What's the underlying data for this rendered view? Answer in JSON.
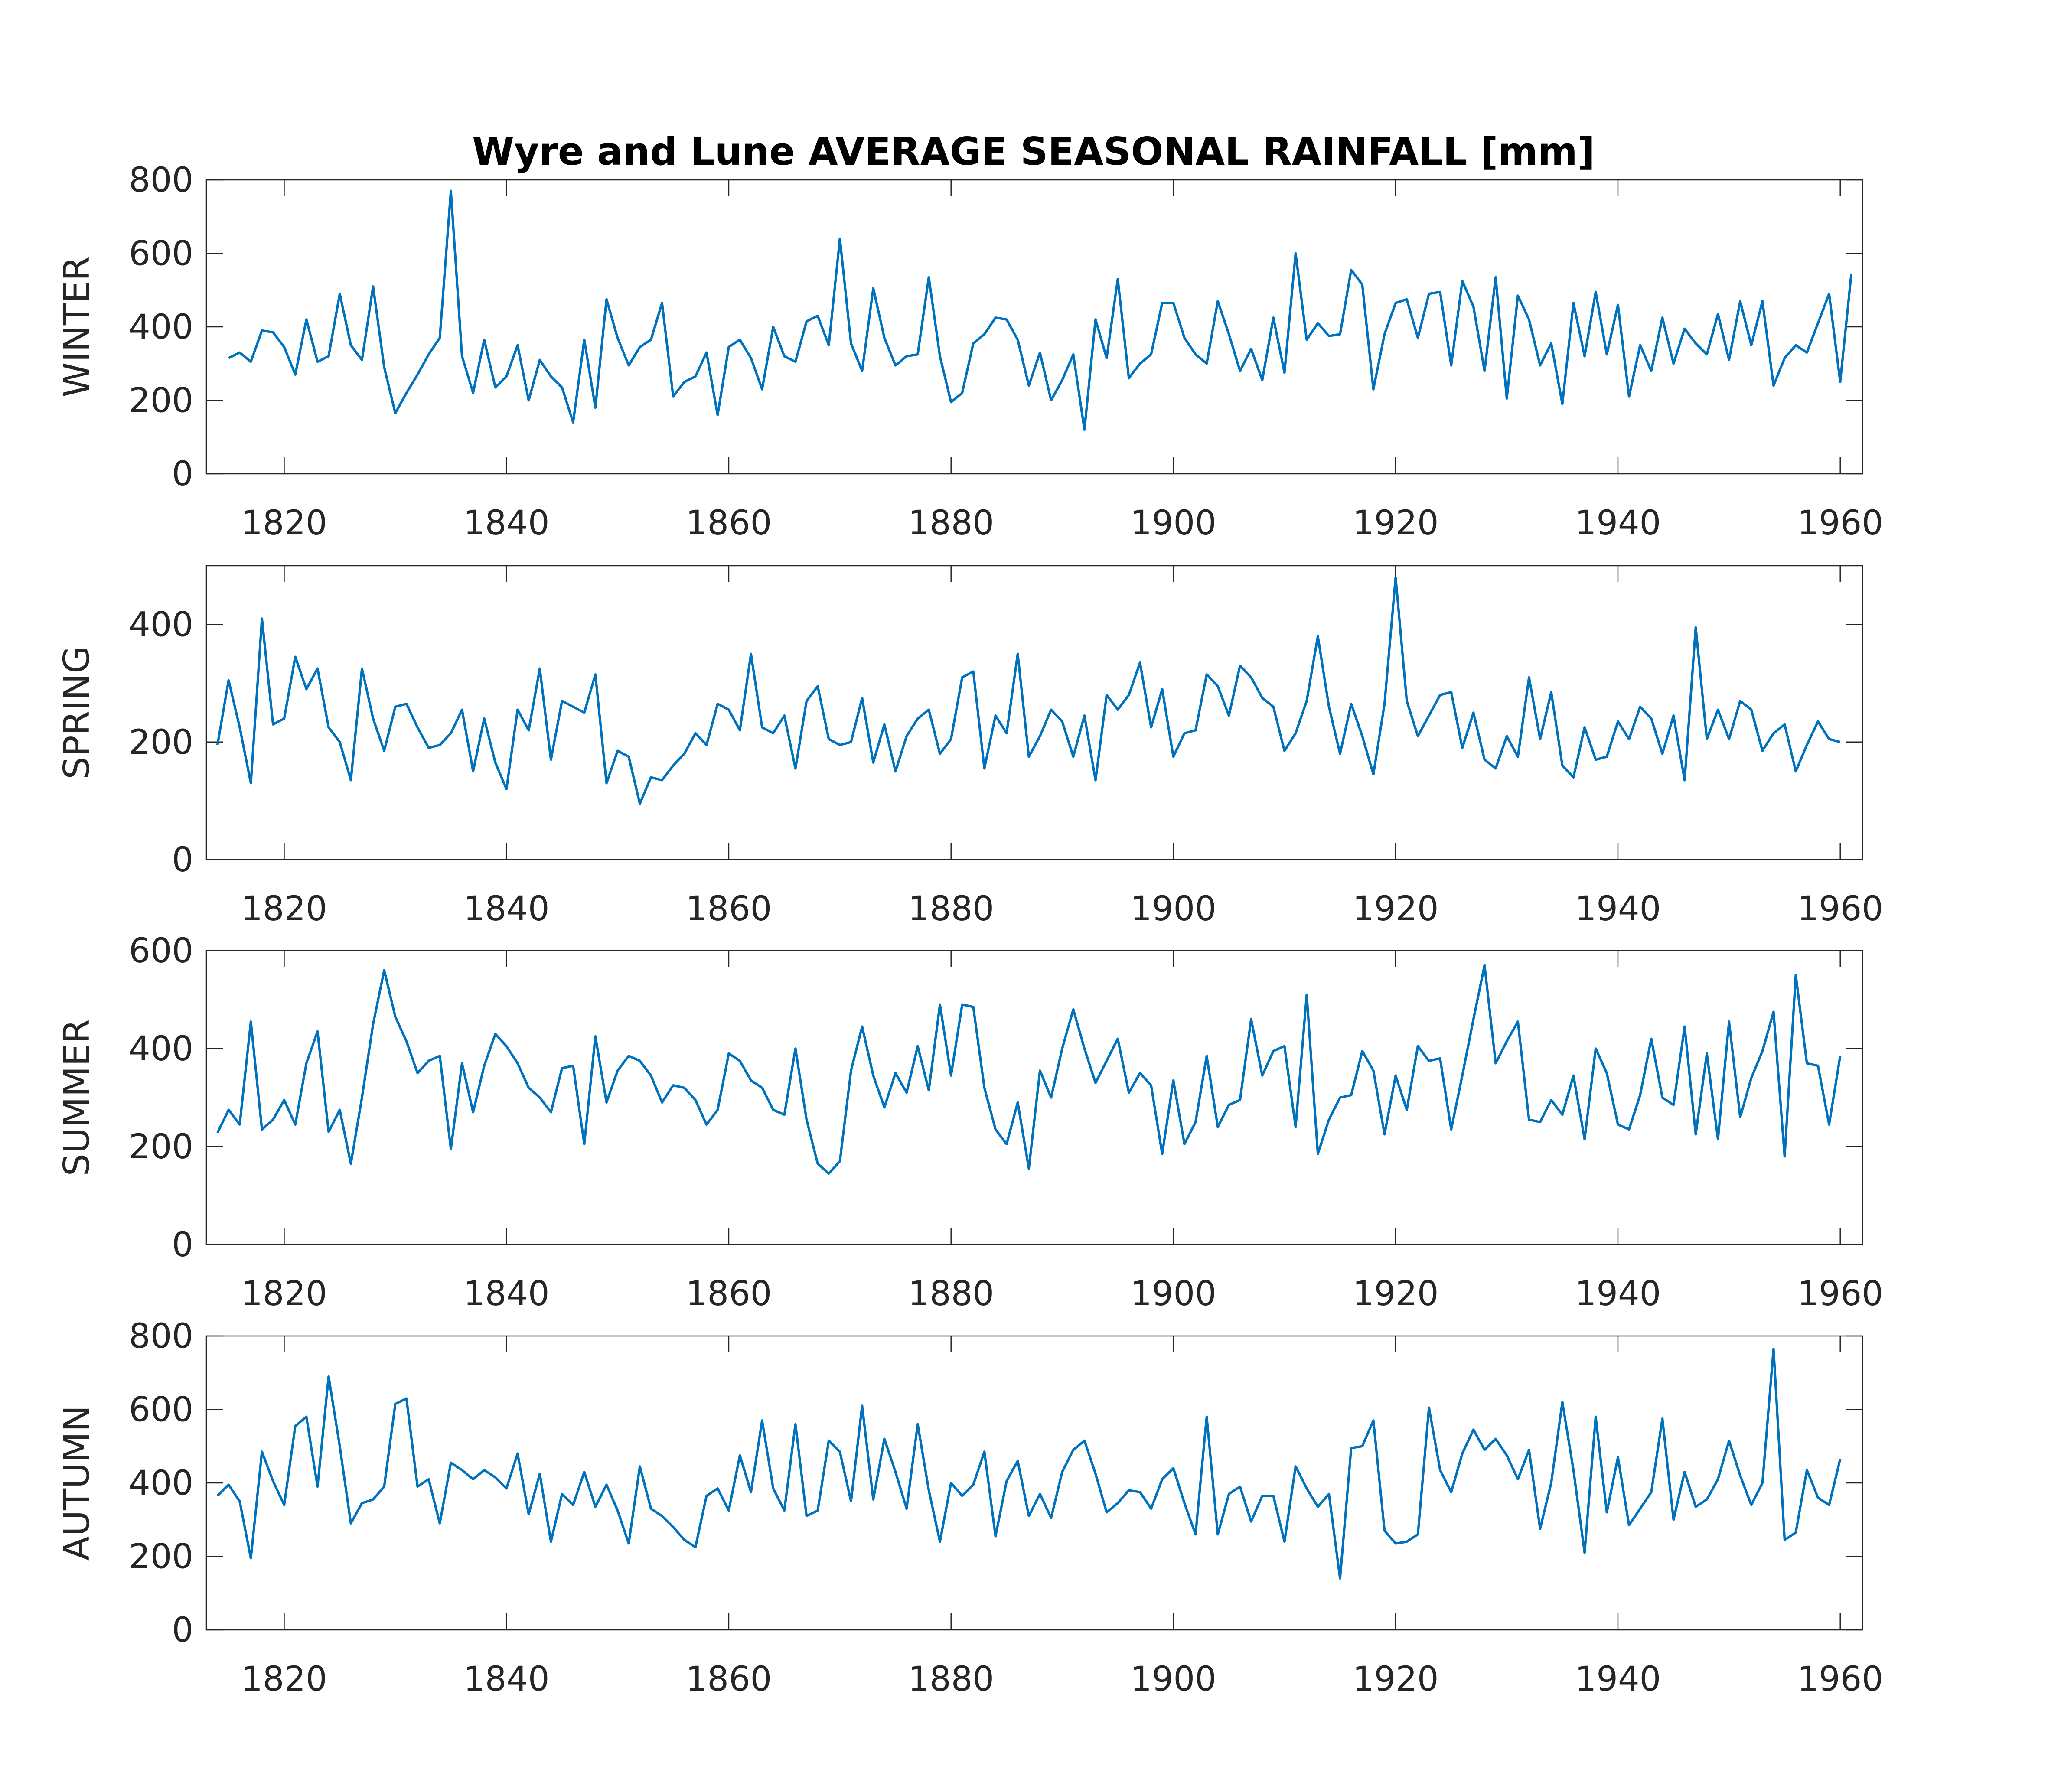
{
  "title": "Wyre and Lune AVERAGE SEASONAL RAINFALL [mm]",
  "line_color": "#0072BD",
  "chart_data": [
    {
      "type": "line",
      "ylabel": "WINTER",
      "xlim": [
        1813,
        1962
      ],
      "ylim": [
        0,
        800
      ],
      "xticks": [
        1820,
        1840,
        1860,
        1880,
        1900,
        1920,
        1940,
        1960
      ],
      "yticks": [
        0,
        200,
        400,
        600,
        800
      ],
      "x_start": 1815,
      "series": [
        {
          "values": [
            315,
            330,
            305,
            390,
            385,
            345,
            270,
            420,
            305,
            320,
            490,
            350,
            310,
            510,
            290,
            165,
            220,
            270,
            325,
            370,
            770,
            320,
            220,
            365,
            235,
            265,
            350,
            200,
            310,
            265,
            235,
            140,
            365,
            180,
            475,
            370,
            295,
            345,
            365,
            465,
            210,
            250,
            265,
            330,
            160,
            345,
            365,
            315,
            230,
            400,
            320,
            305,
            415,
            430,
            350,
            640,
            355,
            280,
            505,
            370,
            295,
            320,
            325,
            535,
            320,
            195,
            220,
            355,
            380,
            425,
            420,
            365,
            240,
            330,
            200,
            255,
            325,
            120,
            420,
            315,
            530,
            260,
            300,
            325,
            465,
            465,
            370,
            325,
            300,
            470,
            380,
            280,
            340,
            255,
            425,
            275,
            600,
            365,
            410,
            375,
            380,
            555,
            515,
            230,
            380,
            465,
            475,
            370,
            490,
            495,
            295,
            525,
            455,
            280,
            535,
            205,
            485,
            420,
            295,
            355,
            190,
            465,
            320,
            495,
            325,
            460,
            210,
            350,
            280,
            425,
            300,
            395,
            355,
            325,
            435,
            310,
            470,
            350,
            470,
            240,
            315,
            350,
            330,
            410,
            490,
            250,
            545
          ]
        }
      ]
    },
    {
      "type": "line",
      "ylabel": "SPRING",
      "xlim": [
        1813,
        1962
      ],
      "ylim": [
        0,
        500
      ],
      "xticks": [
        1820,
        1840,
        1860,
        1880,
        1900,
        1920,
        1940,
        1960
      ],
      "yticks": [
        0,
        200,
        400
      ],
      "x_start": 1814,
      "series": [
        {
          "values": [
            195,
            305,
            225,
            130,
            410,
            230,
            240,
            345,
            290,
            325,
            225,
            200,
            135,
            325,
            240,
            185,
            260,
            265,
            225,
            190,
            195,
            215,
            255,
            150,
            240,
            165,
            120,
            255,
            220,
            325,
            170,
            270,
            260,
            250,
            315,
            130,
            185,
            175,
            95,
            140,
            135,
            160,
            180,
            215,
            195,
            265,
            255,
            220,
            350,
            225,
            215,
            245,
            155,
            270,
            295,
            205,
            195,
            200,
            275,
            165,
            230,
            150,
            210,
            240,
            255,
            180,
            205,
            310,
            320,
            155,
            245,
            215,
            350,
            175,
            210,
            255,
            235,
            175,
            245,
            135,
            280,
            255,
            280,
            335,
            225,
            290,
            175,
            215,
            220,
            315,
            295,
            245,
            330,
            310,
            275,
            260,
            185,
            215,
            270,
            380,
            260,
            180,
            265,
            210,
            145,
            265,
            480,
            270,
            210,
            245,
            280,
            285,
            190,
            250,
            170,
            155,
            210,
            175,
            310,
            205,
            285,
            160,
            140,
            225,
            170,
            175,
            235,
            205,
            260,
            240,
            180,
            245,
            135,
            395,
            205,
            255,
            205,
            270,
            255,
            185,
            215,
            230,
            150,
            195,
            235,
            205,
            200
          ]
        }
      ]
    },
    {
      "type": "line",
      "ylabel": "SUMMER",
      "xlim": [
        1813,
        1962
      ],
      "ylim": [
        0,
        600
      ],
      "xticks": [
        1820,
        1840,
        1860,
        1880,
        1900,
        1920,
        1940,
        1960
      ],
      "yticks": [
        0,
        200,
        400,
        600
      ],
      "x_start": 1814,
      "series": [
        {
          "values": [
            228,
            275,
            245,
            455,
            235,
            255,
            295,
            245,
            370,
            435,
            230,
            275,
            165,
            300,
            450,
            560,
            465,
            415,
            350,
            375,
            385,
            195,
            370,
            270,
            365,
            430,
            405,
            370,
            320,
            300,
            270,
            360,
            365,
            205,
            425,
            290,
            355,
            385,
            375,
            345,
            290,
            325,
            320,
            295,
            245,
            275,
            390,
            375,
            335,
            320,
            275,
            265,
            400,
            255,
            165,
            145,
            170,
            355,
            445,
            345,
            280,
            350,
            310,
            405,
            315,
            490,
            345,
            490,
            485,
            320,
            235,
            205,
            290,
            155,
            355,
            300,
            400,
            480,
            400,
            330,
            375,
            420,
            310,
            350,
            325,
            185,
            335,
            205,
            250,
            385,
            240,
            285,
            295,
            460,
            345,
            395,
            405,
            240,
            510,
            185,
            255,
            300,
            305,
            395,
            355,
            225,
            345,
            275,
            405,
            375,
            380,
            235,
            345,
            460,
            570,
            370,
            415,
            455,
            255,
            250,
            295,
            265,
            345,
            215,
            400,
            350,
            245,
            235,
            305,
            420,
            300,
            285,
            445,
            225,
            390,
            215,
            455,
            260,
            340,
            395,
            475,
            180,
            550,
            370,
            365,
            245,
            385
          ]
        }
      ]
    },
    {
      "type": "line",
      "ylabel": "AUTUMN",
      "xlim": [
        1813,
        1962
      ],
      "ylim": [
        0,
        800
      ],
      "xticks": [
        1820,
        1840,
        1860,
        1880,
        1900,
        1920,
        1940,
        1960
      ],
      "yticks": [
        0,
        200,
        400,
        600,
        800
      ],
      "x_start": 1814,
      "series": [
        {
          "values": [
            365,
            395,
            350,
            195,
            485,
            405,
            340,
            555,
            580,
            390,
            690,
            500,
            290,
            345,
            355,
            390,
            615,
            630,
            390,
            410,
            290,
            455,
            435,
            410,
            435,
            415,
            385,
            480,
            315,
            425,
            240,
            370,
            340,
            430,
            335,
            395,
            325,
            235,
            445,
            330,
            310,
            280,
            245,
            225,
            365,
            385,
            325,
            475,
            375,
            570,
            385,
            325,
            560,
            310,
            325,
            515,
            485,
            350,
            610,
            355,
            520,
            430,
            330,
            560,
            380,
            240,
            400,
            365,
            395,
            485,
            255,
            405,
            460,
            310,
            370,
            305,
            430,
            490,
            515,
            425,
            320,
            345,
            380,
            375,
            330,
            410,
            440,
            345,
            260,
            580,
            260,
            370,
            390,
            295,
            365,
            365,
            240,
            445,
            385,
            335,
            370,
            140,
            495,
            500,
            570,
            270,
            235,
            240,
            260,
            605,
            435,
            375,
            480,
            545,
            490,
            520,
            475,
            410,
            490,
            275,
            400,
            620,
            435,
            210,
            580,
            320,
            470,
            285,
            330,
            375,
            575,
            300,
            430,
            335,
            355,
            410,
            515,
            420,
            340,
            400,
            765,
            245,
            265,
            435,
            360,
            340,
            465
          ]
        }
      ]
    }
  ]
}
